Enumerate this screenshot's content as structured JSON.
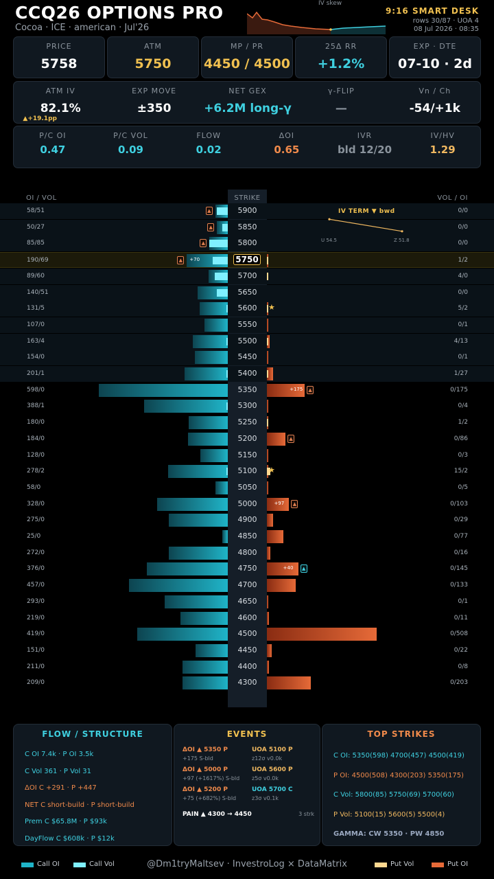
{
  "header": {
    "title": "CCQ26 OPTIONS PRO",
    "subtitle": "Cocoa · ICE · american · Jul'26",
    "skew_label": "IV skew",
    "desk": "9:16 SMART DESK",
    "rows": "rows 30/87 · UOA 4",
    "date": "08 Jul 2026 · 08:35"
  },
  "kpis": [
    {
      "label": "PRICE",
      "value": "5758",
      "color": "#ffffff"
    },
    {
      "label": "ATM",
      "value": "5750",
      "color": "#f0c050"
    },
    {
      "label": "MP / PR",
      "value": "4450 / 4500",
      "color": "#f0c050"
    },
    {
      "label": "25Δ RR",
      "value": "+1.2%",
      "color": "#3fd0e0"
    },
    {
      "label": "EXP · DTE",
      "value": "07-10 · 2d",
      "color": "#ffffff"
    }
  ],
  "stats1": [
    {
      "label": "ATM IV",
      "value": "82.1%",
      "sub": "▲+19.1pp",
      "color": "#ffffff"
    },
    {
      "label": "EXP MOVE",
      "value": "±350",
      "color": "#ffffff"
    },
    {
      "label": "NET GEX",
      "value": "+6.2M long-γ",
      "color": "#3fd0e0"
    },
    {
      "label": "γ-FLIP",
      "value": "—",
      "color": "#8a939c"
    },
    {
      "label": "Vn / Ch",
      "value": "-54/+1k",
      "color": "#ffffff"
    }
  ],
  "stats2": [
    {
      "label": "P/C OI",
      "value": "0.47",
      "color": "#3fd0e0"
    },
    {
      "label": "P/C VOL",
      "value": "0.09",
      "color": "#3fd0e0"
    },
    {
      "label": "FLOW",
      "value": "0.02",
      "color": "#3fd0e0"
    },
    {
      "label": "ΔOI",
      "value": "0.65",
      "color": "#f08a4b"
    },
    {
      "label": "IVR",
      "value": "bld 12/20",
      "color": "#8a939c"
    },
    {
      "label": "IV/HV",
      "value": "1.29",
      "color": "#f0b860"
    }
  ],
  "ladder": {
    "hdr_left": "OI / VOL",
    "hdr_mid": "STRIKE",
    "hdr_right": "VOL / OI",
    "rows": [
      {
        "strike": "5900",
        "left": "58/51",
        "right": "0/0",
        "coi": 58,
        "cvol": 51,
        "poi": 0,
        "pvol": 0,
        "cflag": "▲"
      },
      {
        "strike": "5850",
        "left": "50/27",
        "right": "0/0",
        "coi": 50,
        "cvol": 27,
        "poi": 0,
        "pvol": 0,
        "cflag": "▲"
      },
      {
        "strike": "5800",
        "left": "85/85",
        "right": "0/0",
        "coi": 85,
        "cvol": 85,
        "poi": 0,
        "pvol": 0,
        "cflag": "▲"
      },
      {
        "strike": "5750",
        "left": "190/69",
        "right": "1/2",
        "coi": 190,
        "cvol": 69,
        "poi": 2,
        "pvol": 1,
        "cflag": "▲",
        "cdelta": "+70",
        "atm": true
      },
      {
        "strike": "5700",
        "left": "89/60",
        "right": "4/0",
        "coi": 89,
        "cvol": 60,
        "poi": 0,
        "pvol": 4
      },
      {
        "strike": "5650",
        "left": "140/51",
        "right": "0/0",
        "coi": 140,
        "cvol": 51,
        "poi": 0,
        "pvol": 0
      },
      {
        "strike": "5600",
        "left": "131/5",
        "right": "5/2",
        "coi": 131,
        "cvol": 5,
        "poi": 2,
        "pvol": 5,
        "star": true
      },
      {
        "strike": "5550",
        "left": "107/0",
        "right": "0/1",
        "coi": 107,
        "cvol": 0,
        "poi": 1,
        "pvol": 0
      },
      {
        "strike": "5500",
        "left": "163/4",
        "right": "4/13",
        "coi": 163,
        "cvol": 4,
        "poi": 13,
        "pvol": 4
      },
      {
        "strike": "5450",
        "left": "154/0",
        "right": "0/1",
        "coi": 154,
        "cvol": 0,
        "poi": 1,
        "pvol": 0
      },
      {
        "strike": "5400",
        "left": "201/1",
        "right": "1/27",
        "coi": 201,
        "cvol": 1,
        "poi": 27,
        "pvol": 1
      },
      {
        "strike": "5350",
        "left": "598/0",
        "right": "0/175",
        "coi": 598,
        "cvol": 0,
        "poi": 175,
        "pvol": 0,
        "pflag": "▲",
        "pdelta": "+175"
      },
      {
        "strike": "5300",
        "left": "388/1",
        "right": "0/4",
        "coi": 388,
        "cvol": 1,
        "poi": 4,
        "pvol": 0
      },
      {
        "strike": "5250",
        "left": "180/0",
        "right": "1/2",
        "coi": 180,
        "cvol": 0,
        "poi": 2,
        "pvol": 1
      },
      {
        "strike": "5200",
        "left": "184/0",
        "right": "0/86",
        "coi": 184,
        "cvol": 0,
        "poi": 86,
        "pvol": 0,
        "pflag": "▲"
      },
      {
        "strike": "5150",
        "left": "128/0",
        "right": "0/3",
        "coi": 128,
        "cvol": 0,
        "poi": 3,
        "pvol": 0
      },
      {
        "strike": "5100",
        "left": "278/2",
        "right": "15/2",
        "coi": 278,
        "cvol": 2,
        "poi": 2,
        "pvol": 15,
        "star": true
      },
      {
        "strike": "5050",
        "left": "58/0",
        "right": "0/5",
        "coi": 58,
        "cvol": 0,
        "poi": 5,
        "pvol": 0
      },
      {
        "strike": "5000",
        "left": "328/0",
        "right": "0/103",
        "coi": 328,
        "cvol": 0,
        "poi": 103,
        "pvol": 0,
        "pflag": "▲",
        "pdelta": "+97"
      },
      {
        "strike": "4900",
        "left": "275/0",
        "right": "0/29",
        "coi": 275,
        "cvol": 0,
        "poi": 29,
        "pvol": 0
      },
      {
        "strike": "4850",
        "left": "25/0",
        "right": "0/77",
        "coi": 25,
        "cvol": 0,
        "poi": 77,
        "pvol": 0
      },
      {
        "strike": "4800",
        "left": "272/0",
        "right": "0/16",
        "coi": 272,
        "cvol": 0,
        "poi": 16,
        "pvol": 0
      },
      {
        "strike": "4750",
        "left": "376/0",
        "right": "0/145",
        "coi": 376,
        "cvol": 0,
        "poi": 145,
        "pvol": 0,
        "pflag": "▲",
        "pflagcyan": true,
        "pdelta": "+40"
      },
      {
        "strike": "4700",
        "left": "457/0",
        "right": "0/133",
        "coi": 457,
        "cvol": 0,
        "poi": 133,
        "pvol": 0
      },
      {
        "strike": "4650",
        "left": "293/0",
        "right": "0/1",
        "coi": 293,
        "cvol": 0,
        "poi": 1,
        "pvol": 0
      },
      {
        "strike": "4600",
        "left": "219/0",
        "right": "0/11",
        "coi": 219,
        "cvol": 0,
        "poi": 11,
        "pvol": 0
      },
      {
        "strike": "4500",
        "left": "419/0",
        "right": "0/508",
        "coi": 419,
        "cvol": 0,
        "poi": 508,
        "pvol": 0
      },
      {
        "strike": "4450",
        "left": "151/0",
        "right": "0/22",
        "coi": 151,
        "cvol": 0,
        "poi": 22,
        "pvol": 0
      },
      {
        "strike": "4400",
        "left": "211/0",
        "right": "0/8",
        "coi": 211,
        "cvol": 0,
        "poi": 8,
        "pvol": 0
      },
      {
        "strike": "4300",
        "left": "209/0",
        "right": "0/203",
        "coi": 209,
        "cvol": 0,
        "poi": 203,
        "pvol": 0
      }
    ]
  },
  "iv_term": {
    "title": "IV TERM  ▼ bwd",
    "u_label": "U 54.5",
    "z_label": "Z 51.8",
    "u_value": 54.5,
    "z_value": 51.8
  },
  "flow_panel": {
    "title": "FLOW / STRUCTURE",
    "lines": [
      {
        "text": "C OI 7.4k  ·  P OI 3.5k",
        "color": "#3fd0e0"
      },
      {
        "text": "C Vol 361  ·  P Vol 31",
        "color": "#3fd0e0"
      },
      {
        "text": "ΔOI C +291  ·  P +447",
        "color": "#f08a4b"
      },
      {
        "text": "NET  C short-build  ·  P short-build",
        "color": "#f08a4b"
      },
      {
        "text": "Prem  C $65.8M  ·  P $93k",
        "color": "#3fd0e0"
      },
      {
        "text": "DayFlow  C $608k  ·  P $12k",
        "color": "#3fd0e0"
      }
    ]
  },
  "events_panel": {
    "title": "EVENTS",
    "left": [
      {
        "head": "ΔOI ▲ 5350 P",
        "sub": "+175  S-bld"
      },
      {
        "head": "ΔOI ▲ 5000 P",
        "sub": "+97 (+1617%)  S-bld"
      },
      {
        "head": "ΔOI ▲ 5200 P",
        "sub": "+75 (+682%)  S-bld"
      }
    ],
    "right": [
      {
        "head": "UOA 5100 P",
        "sub": "z12σ v0.0k"
      },
      {
        "head": "UOA 5600 P",
        "sub": "z5σ v0.0k"
      },
      {
        "head": "UOA 5700 C",
        "sub": "z3σ v0.1k"
      }
    ],
    "pain": "PAIN ▲ 4300 → 4450",
    "pain_note": "3 strk"
  },
  "top_panel": {
    "title": "TOP STRIKES",
    "lines": [
      {
        "text": "C OI: 5350(598)  4700(457)  4500(419)",
        "color": "#3fd0e0"
      },
      {
        "text": "P OI: 4500(508)  4300(203)  5350(175)",
        "color": "#f08a4b"
      },
      {
        "text": "C Vol: 5800(85)  5750(69)  5700(60)",
        "color": "#3fd0e0"
      },
      {
        "text": "P Vol: 5100(15)  5600(5)  5500(4)",
        "color": "#f0b860"
      },
      {
        "text": "GAMMA: CW 5350 · PW 4850",
        "color": "#9aa8c0"
      }
    ]
  },
  "legend": {
    "call_oi": "Call OI",
    "call_vol": "Call Vol",
    "credit": "@Dm1tryMaltsev  ·  InvestroLog × DataMatrix",
    "put_vol": "Put Vol",
    "put_oi": "Put OI"
  },
  "colors": {
    "call_oi": "#1fb4c8",
    "call_vol": "#7ff0ff",
    "put_oi": "#e66a38",
    "put_vol": "#ffd890",
    "accent": "#f0c050"
  },
  "chart_data": {
    "type": "bar",
    "categories": [
      "5900",
      "5850",
      "5800",
      "5750",
      "5700",
      "5650",
      "5600",
      "5550",
      "5500",
      "5450",
      "5400",
      "5350",
      "5300",
      "5250",
      "5200",
      "5150",
      "5100",
      "5050",
      "5000",
      "4900",
      "4850",
      "4800",
      "4750",
      "4700",
      "4650",
      "4600",
      "4500",
      "4450",
      "4400",
      "4300"
    ],
    "series": [
      {
        "name": "Call OI",
        "values": [
          58,
          50,
          85,
          190,
          89,
          140,
          131,
          107,
          163,
          154,
          201,
          598,
          388,
          180,
          184,
          128,
          278,
          58,
          328,
          275,
          25,
          272,
          376,
          457,
          293,
          219,
          419,
          151,
          211,
          209
        ]
      },
      {
        "name": "Call Vol",
        "values": [
          51,
          27,
          85,
          69,
          60,
          51,
          5,
          0,
          4,
          0,
          1,
          0,
          1,
          0,
          0,
          0,
          2,
          0,
          0,
          0,
          0,
          0,
          0,
          0,
          0,
          0,
          0,
          0,
          0,
          0
        ]
      },
      {
        "name": "Put Vol",
        "values": [
          0,
          0,
          0,
          1,
          4,
          0,
          5,
          0,
          4,
          0,
          1,
          0,
          0,
          1,
          0,
          0,
          15,
          0,
          0,
          0,
          0,
          0,
          0,
          0,
          0,
          0,
          0,
          0,
          0,
          0
        ]
      },
      {
        "name": "Put OI",
        "values": [
          0,
          0,
          0,
          2,
          0,
          0,
          2,
          1,
          13,
          1,
          27,
          175,
          4,
          2,
          86,
          3,
          2,
          5,
          103,
          29,
          77,
          16,
          145,
          133,
          1,
          11,
          508,
          22,
          8,
          203
        ]
      }
    ],
    "xlabel": "STRIKE"
  }
}
